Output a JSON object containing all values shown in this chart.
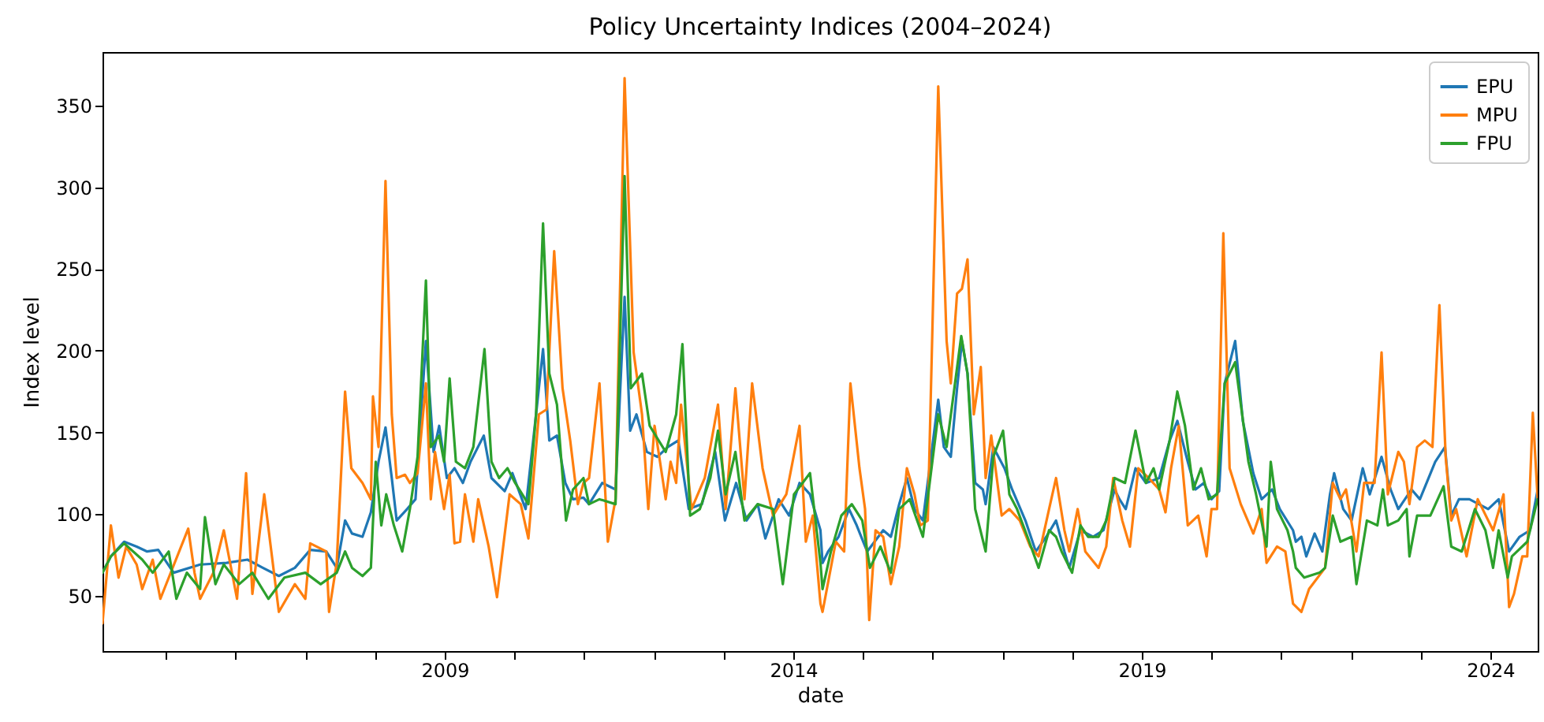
{
  "chart_data": {
    "type": "line",
    "title": "Policy Uncertainty Indices (2004–2024)",
    "xlabel": "date",
    "ylabel": "Index level",
    "xlim": [
      2004.09,
      2024.68
    ],
    "ylim": [
      16,
      383
    ],
    "xticks": [
      {
        "value": 2005,
        "label": null
      },
      {
        "value": 2006,
        "label": null
      },
      {
        "value": 2007,
        "label": null
      },
      {
        "value": 2008,
        "label": null
      },
      2009,
      {
        "value": 2010,
        "label": null
      },
      {
        "value": 2011,
        "label": null
      },
      {
        "value": 2012,
        "label": null
      },
      {
        "value": 2013,
        "label": null
      },
      2014,
      {
        "value": 2015,
        "label": null
      },
      {
        "value": 2016,
        "label": null
      },
      {
        "value": 2017,
        "label": null
      },
      {
        "value": 2018,
        "label": null
      },
      2019,
      {
        "value": 2020,
        "label": null
      },
      {
        "value": 2021,
        "label": null
      },
      {
        "value": 2022,
        "label": null
      },
      {
        "value": 2023,
        "label": null
      },
      2024
    ],
    "yticks": [
      50,
      100,
      150,
      200,
      250,
      300,
      350
    ],
    "legend": "top right",
    "series": [
      {
        "name": "EPU",
        "color": "#1f77b4",
        "x": [
          2004.09,
          2004.21,
          2004.4,
          2004.58,
          2004.73,
          2004.89,
          2005.11,
          2005.49,
          2005.87,
          2006.17,
          2006.39,
          2006.62,
          2006.85,
          2007.07,
          2007.3,
          2007.45,
          2007.57,
          2007.67,
          2007.82,
          2007.94,
          2008.05,
          2008.15,
          2008.24,
          2008.31,
          2008.46,
          2008.58,
          2008.73,
          2008.84,
          2008.92,
          2009.03,
          2009.14,
          2009.26,
          2009.37,
          2009.56,
          2009.67,
          2009.86,
          2009.97,
          2010.16,
          2010.31,
          2010.41,
          2010.5,
          2010.61,
          2010.73,
          2010.84,
          2010.99,
          2011.07,
          2011.26,
          2011.45,
          2011.58,
          2011.66,
          2011.75,
          2011.9,
          2012.05,
          2012.2,
          2012.35,
          2012.5,
          2012.69,
          2012.88,
          2013.02,
          2013.18,
          2013.33,
          2013.49,
          2013.6,
          2013.79,
          2013.94,
          2014.09,
          2014.24,
          2014.39,
          2014.42,
          2014.5,
          2014.65,
          2014.8,
          2014.91,
          2015.06,
          2015.29,
          2015.4,
          2015.52,
          2015.63,
          2015.74,
          2015.86,
          2016.08,
          2016.16,
          2016.26,
          2016.35,
          2016.42,
          2016.5,
          2016.61,
          2016.72,
          2016.76,
          2016.87,
          2017.03,
          2017.14,
          2017.33,
          2017.48,
          2017.63,
          2017.77,
          2017.89,
          2017.96,
          2018.12,
          2018.3,
          2018.45,
          2018.61,
          2018.68,
          2018.77,
          2018.91,
          2019.06,
          2019.25,
          2019.4,
          2019.51,
          2019.66,
          2019.77,
          2019.89,
          2020.0,
          2020.11,
          2020.19,
          2020.34,
          2020.45,
          2020.6,
          2020.72,
          2020.87,
          2020.98,
          2021.17,
          2021.21,
          2021.29,
          2021.36,
          2021.48,
          2021.59,
          2021.7,
          2021.76,
          2021.89,
          2022.01,
          2022.17,
          2022.27,
          2022.44,
          2022.57,
          2022.68,
          2022.87,
          2022.99,
          2023.21,
          2023.35,
          2023.44,
          2023.55,
          2023.7,
          2023.97,
          2024.12,
          2024.27,
          2024.42,
          2024.57,
          2024.68
        ],
        "values": [
          64,
          74,
          83,
          80,
          77,
          78,
          64,
          69,
          70,
          72,
          67,
          62,
          67,
          78,
          77,
          67,
          96,
          88,
          86,
          101,
          132,
          153,
          122,
          96,
          103,
          109,
          206,
          138,
          154,
          122,
          128,
          119,
          132,
          148,
          122,
          114,
          125,
          103,
          161,
          201,
          145,
          148,
          119,
          109,
          110,
          106,
          119,
          115,
          233,
          151,
          161,
          138,
          135,
          141,
          145,
          103,
          106,
          138,
          96,
          119,
          96,
          106,
          85,
          109,
          99,
          119,
          112,
          90,
          70,
          77,
          86,
          103,
          93,
          77,
          90,
          86,
          106,
          122,
          103,
          96,
          170,
          141,
          135,
          177,
          206,
          186,
          119,
          115,
          106,
          141,
          128,
          115,
          96,
          77,
          86,
          96,
          77,
          67,
          90,
          86,
          90,
          115,
          109,
          103,
          128,
          119,
          122,
          145,
          157,
          132,
          115,
          119,
          109,
          114,
          180,
          206,
          157,
          125,
          109,
          115,
          103,
          90,
          83,
          86,
          74,
          88,
          77,
          112,
          125,
          103,
          96,
          128,
          112,
          135,
          115,
          103,
          115,
          109,
          132,
          141,
          99,
          109,
          109,
          103,
          109,
          77,
          86,
          90,
          115
        ]
      },
      {
        "name": "MPU",
        "color": "#ff7f0e",
        "x": [
          2004.09,
          2004.21,
          2004.32,
          2004.43,
          2004.58,
          2004.66,
          2004.81,
          2004.92,
          2005.32,
          2005.41,
          2005.49,
          2005.68,
          2005.83,
          2006.02,
          2006.15,
          2006.24,
          2006.41,
          2006.62,
          2006.85,
          2007.0,
          2007.07,
          2007.3,
          2007.34,
          2007.45,
          2007.57,
          2007.66,
          2007.82,
          2007.94,
          2007.97,
          2008.05,
          2008.15,
          2008.24,
          2008.31,
          2008.43,
          2008.5,
          2008.61,
          2008.73,
          2008.8,
          2008.86,
          2008.99,
          2009.07,
          2009.14,
          2009.22,
          2009.29,
          2009.41,
          2009.48,
          2009.63,
          2009.75,
          2009.93,
          2010.09,
          2010.2,
          2010.35,
          2010.46,
          2010.57,
          2010.69,
          2010.8,
          2010.91,
          2010.99,
          2011.07,
          2011.22,
          2011.34,
          2011.45,
          2011.58,
          2011.71,
          2011.83,
          2011.92,
          2012.01,
          2012.17,
          2012.24,
          2012.32,
          2012.39,
          2012.54,
          2012.73,
          2012.92,
          2013.03,
          2013.17,
          2013.3,
          2013.41,
          2013.56,
          2013.71,
          2013.9,
          2014.09,
          2014.18,
          2014.28,
          2014.39,
          2014.42,
          2014.61,
          2014.73,
          2014.82,
          2014.95,
          2015.03,
          2015.09,
          2015.18,
          2015.29,
          2015.4,
          2015.52,
          2015.63,
          2015.74,
          2015.82,
          2015.93,
          2016.08,
          2016.2,
          2016.26,
          2016.35,
          2016.42,
          2016.5,
          2016.59,
          2016.69,
          2016.76,
          2016.84,
          2016.99,
          2017.1,
          2017.25,
          2017.4,
          2017.52,
          2017.67,
          2017.77,
          2017.89,
          2017.96,
          2018.08,
          2018.19,
          2018.38,
          2018.49,
          2018.59,
          2018.72,
          2018.83,
          2018.95,
          2019.1,
          2019.25,
          2019.34,
          2019.42,
          2019.53,
          2019.66,
          2019.81,
          2019.93,
          2020.0,
          2020.08,
          2020.17,
          2020.26,
          2020.42,
          2020.6,
          2020.72,
          2020.79,
          2020.94,
          2021.06,
          2021.17,
          2021.29,
          2021.4,
          2021.63,
          2021.74,
          2021.85,
          2021.93,
          2022.08,
          2022.19,
          2022.34,
          2022.44,
          2022.53,
          2022.68,
          2022.76,
          2022.84,
          2022.95,
          2023.06,
          2023.17,
          2023.27,
          2023.36,
          2023.44,
          2023.51,
          2023.66,
          2023.82,
          2024.04,
          2024.19,
          2024.27,
          2024.34,
          2024.46,
          2024.53,
          2024.61,
          2024.68
        ],
        "values": [
          33,
          93,
          61,
          80,
          69,
          54,
          72,
          48,
          91,
          64,
          48,
          64,
          90,
          48,
          125,
          51,
          112,
          40,
          57,
          48,
          82,
          77,
          40,
          70,
          175,
          128,
          119,
          109,
          172,
          141,
          304,
          161,
          122,
          124,
          119,
          125,
          180,
          109,
          138,
          103,
          124,
          82,
          83,
          112,
          83,
          109,
          80,
          49,
          112,
          106,
          85,
          161,
          164,
          261,
          177,
          145,
          106,
          119,
          122,
          180,
          83,
          109,
          367,
          199,
          161,
          103,
          154,
          109,
          132,
          119,
          167,
          103,
          122,
          167,
          103,
          177,
          109,
          180,
          128,
          99,
          112,
          154,
          83,
          99,
          45,
          40,
          83,
          77,
          180,
          128,
          103,
          35,
          90,
          86,
          57,
          80,
          128,
          112,
          93,
          96,
          362,
          206,
          180,
          235,
          238,
          256,
          161,
          190,
          122,
          148,
          99,
          103,
          96,
          80,
          74,
          103,
          122,
          90,
          77,
          103,
          77,
          67,
          80,
          122,
          96,
          80,
          128,
          122,
          115,
          101,
          128,
          154,
          93,
          99,
          74,
          103,
          103,
          272,
          128,
          106,
          88,
          103,
          70,
          80,
          77,
          45,
          40,
          54,
          67,
          119,
          109,
          115,
          77,
          119,
          119,
          199,
          112,
          138,
          132,
          106,
          141,
          145,
          141,
          228,
          135,
          96,
          103,
          74,
          109,
          90,
          112,
          43,
          51,
          74,
          74,
          162,
          109
        ]
      },
      {
        "name": "FPU",
        "color": "#2ca02c",
        "x": [
          2004.09,
          2004.21,
          2004.4,
          2004.66,
          2004.81,
          2005.04,
          2005.15,
          2005.3,
          2005.49,
          2005.56,
          2005.71,
          2005.83,
          2006.05,
          2006.24,
          2006.47,
          2006.7,
          2007.0,
          2007.22,
          2007.45,
          2007.57,
          2007.67,
          2007.82,
          2007.94,
          2008.01,
          2008.09,
          2008.16,
          2008.27,
          2008.39,
          2008.5,
          2008.61,
          2008.73,
          2008.8,
          2008.92,
          2008.99,
          2009.07,
          2009.16,
          2009.29,
          2009.41,
          2009.57,
          2009.67,
          2009.78,
          2009.9,
          2010.01,
          2010.2,
          2010.31,
          2010.41,
          2010.5,
          2010.61,
          2010.74,
          2010.84,
          2010.99,
          2011.07,
          2011.22,
          2011.45,
          2011.58,
          2011.67,
          2011.83,
          2011.94,
          2012.17,
          2012.32,
          2012.41,
          2012.52,
          2012.66,
          2012.81,
          2012.92,
          2013.03,
          2013.17,
          2013.3,
          2013.49,
          2013.71,
          2013.85,
          2014.01,
          2014.24,
          2014.39,
          2014.42,
          2014.54,
          2014.69,
          2014.84,
          2014.99,
          2015.1,
          2015.25,
          2015.4,
          2015.52,
          2015.67,
          2015.86,
          2016.08,
          2016.2,
          2016.41,
          2016.5,
          2016.61,
          2016.76,
          2016.87,
          2017.01,
          2017.1,
          2017.21,
          2017.36,
          2017.52,
          2017.67,
          2017.77,
          2017.85,
          2018.0,
          2018.12,
          2018.23,
          2018.38,
          2018.49,
          2018.61,
          2018.76,
          2018.91,
          2019.06,
          2019.17,
          2019.25,
          2019.4,
          2019.51,
          2019.62,
          2019.74,
          2019.85,
          2019.96,
          2020.08,
          2020.19,
          2020.34,
          2020.53,
          2020.64,
          2020.79,
          2020.85,
          2020.94,
          2021.09,
          2021.17,
          2021.21,
          2021.33,
          2021.55,
          2021.63,
          2021.74,
          2021.85,
          2022.01,
          2022.08,
          2022.23,
          2022.38,
          2022.46,
          2022.53,
          2022.68,
          2022.8,
          2022.84,
          2022.95,
          2023.14,
          2023.33,
          2023.44,
          2023.59,
          2023.78,
          2023.93,
          2024.04,
          2024.12,
          2024.25,
          2024.31,
          2024.53,
          2024.68
        ],
        "values": [
          64,
          74,
          82,
          72,
          64,
          77,
          48,
          64,
          54,
          98,
          57,
          69,
          57,
          64,
          48,
          61,
          64,
          57,
          64,
          77,
          67,
          62,
          67,
          132,
          93,
          112,
          93,
          77,
          103,
          135,
          243,
          141,
          148,
          132,
          183,
          132,
          128,
          141,
          201,
          132,
          122,
          128,
          119,
          106,
          161,
          278,
          186,
          167,
          96,
          115,
          122,
          106,
          109,
          106,
          307,
          177,
          186,
          154,
          138,
          161,
          204,
          99,
          103,
          122,
          151,
          112,
          138,
          96,
          106,
          103,
          57,
          112,
          125,
          70,
          54,
          77,
          99,
          106,
          96,
          67,
          80,
          64,
          103,
          109,
          86,
          161,
          141,
          209,
          186,
          103,
          77,
          135,
          151,
          112,
          103,
          86,
          67,
          90,
          86,
          77,
          64,
          93,
          86,
          86,
          96,
          122,
          119,
          151,
          119,
          128,
          115,
          145,
          175,
          154,
          115,
          128,
          109,
          112,
          180,
          193,
          132,
          112,
          80,
          132,
          103,
          90,
          77,
          67,
          61,
          64,
          67,
          99,
          83,
          86,
          57,
          96,
          93,
          115,
          93,
          96,
          103,
          74,
          99,
          99,
          117,
          80,
          77,
          103,
          90,
          67,
          90,
          61,
          74,
          83,
          109
        ]
      }
    ]
  }
}
